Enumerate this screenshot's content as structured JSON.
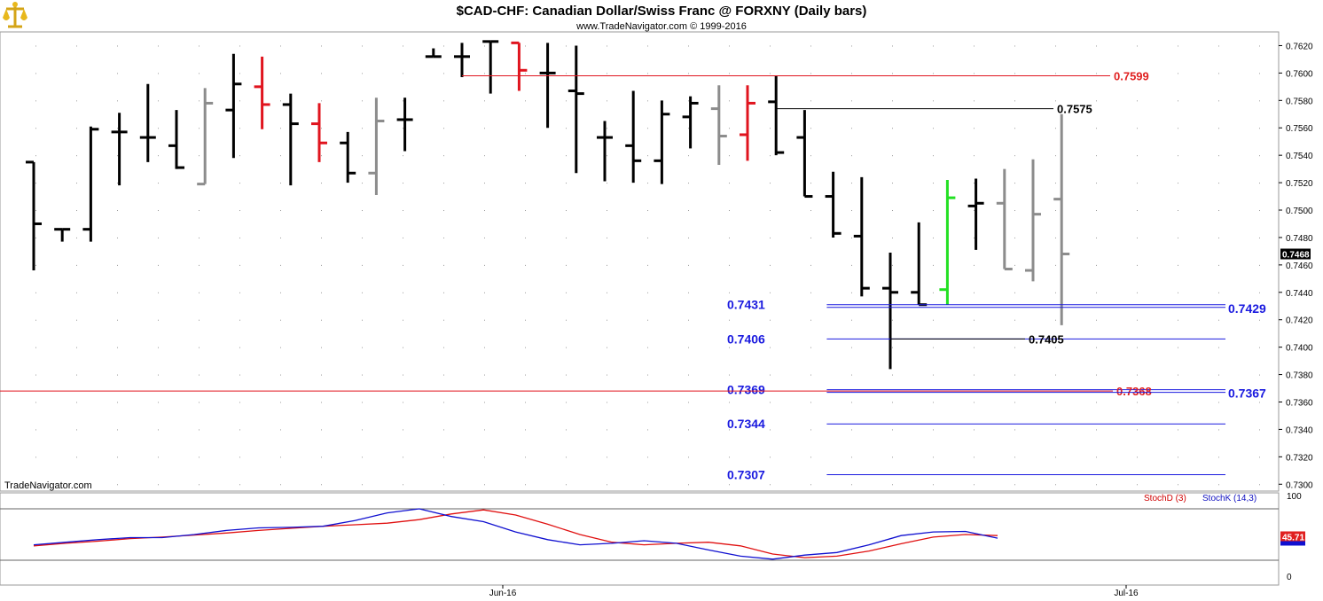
{
  "header": {
    "title": "$CAD-CHF:  Canadian Dollar/Swiss Franc @ FORXNY  (Daily bars)",
    "subtitle": "www.TradeNavigator.com © 1999-2016"
  },
  "watermark": "TradeNavigator.com",
  "logo_icon": "scales-icon",
  "colors": {
    "bar_black": "#000000",
    "bar_red": "#e0141e",
    "bar_gray": "#8c8c8c",
    "bar_green": "#22e022",
    "level_blue": "#1a1adf",
    "level_red": "#e02020",
    "stoch_d": "#e01010",
    "stoch_k": "#1010d0"
  },
  "chart_data": [
    {
      "type": "ohlc",
      "title": "$CAD-CHF:  Canadian Dollar/Swiss Franc @ FORXNY  (Daily bars)",
      "ylim": [
        0.7295,
        0.763
      ],
      "yticks": [
        "0.7620",
        "0.7600",
        "0.7580",
        "0.7560",
        "0.7540",
        "0.7520",
        "0.7500",
        "0.7480",
        "0.7460",
        "0.7440",
        "0.7420",
        "0.7400",
        "0.7380",
        "0.7360",
        "0.7340",
        "0.7320",
        "0.7300"
      ],
      "x_labels": [
        "Jun-16",
        "Jul-16"
      ],
      "last_price": "0.7468",
      "bars": [
        {
          "o": 0.7535,
          "h": 0.7535,
          "l": 0.7456,
          "c": 0.749,
          "color": "black"
        },
        {
          "o": 0.7486,
          "h": 0.7486,
          "l": 0.7477,
          "c": 0.7486,
          "color": "black"
        },
        {
          "o": 0.7486,
          "h": 0.7561,
          "l": 0.7477,
          "c": 0.7559,
          "color": "black"
        },
        {
          "o": 0.7557,
          "h": 0.7571,
          "l": 0.7518,
          "c": 0.7557,
          "color": "black"
        },
        {
          "o": 0.7553,
          "h": 0.7592,
          "l": 0.7535,
          "c": 0.7553,
          "color": "black"
        },
        {
          "o": 0.7547,
          "h": 0.7573,
          "l": 0.753,
          "c": 0.7531,
          "color": "black"
        },
        {
          "o": 0.7519,
          "h": 0.7589,
          "l": 0.7519,
          "c": 0.7578,
          "color": "gray"
        },
        {
          "o": 0.7573,
          "h": 0.7614,
          "l": 0.7538,
          "c": 0.7592,
          "color": "black"
        },
        {
          "o": 0.759,
          "h": 0.7612,
          "l": 0.7559,
          "c": 0.7577,
          "color": "red"
        },
        {
          "o": 0.7577,
          "h": 0.7585,
          "l": 0.7518,
          "c": 0.7563,
          "color": "black"
        },
        {
          "o": 0.7563,
          "h": 0.7578,
          "l": 0.7535,
          "c": 0.7549,
          "color": "red"
        },
        {
          "o": 0.7549,
          "h": 0.7557,
          "l": 0.752,
          "c": 0.7527,
          "color": "black"
        },
        {
          "o": 0.7527,
          "h": 0.7582,
          "l": 0.7511,
          "c": 0.7565,
          "color": "gray"
        },
        {
          "o": 0.7566,
          "h": 0.7582,
          "l": 0.7543,
          "c": 0.7566,
          "color": "black"
        },
        {
          "o": 0.7612,
          "h": 0.7618,
          "l": 0.7612,
          "c": 0.7612,
          "color": "black"
        },
        {
          "o": 0.7612,
          "h": 0.7622,
          "l": 0.7597,
          "c": 0.7612,
          "color": "black"
        },
        {
          "o": 0.7623,
          "h": 0.7623,
          "l": 0.7585,
          "c": 0.7623,
          "color": "black"
        },
        {
          "o": 0.7622,
          "h": 0.7622,
          "l": 0.7587,
          "c": 0.7602,
          "color": "red"
        },
        {
          "o": 0.76,
          "h": 0.7622,
          "l": 0.756,
          "c": 0.76,
          "color": "black"
        },
        {
          "o": 0.7587,
          "h": 0.762,
          "l": 0.7527,
          "c": 0.7585,
          "color": "black"
        },
        {
          "o": 0.7553,
          "h": 0.7565,
          "l": 0.7521,
          "c": 0.7553,
          "color": "black"
        },
        {
          "o": 0.7547,
          "h": 0.7587,
          "l": 0.752,
          "c": 0.7536,
          "color": "black"
        },
        {
          "o": 0.7536,
          "h": 0.758,
          "l": 0.7519,
          "c": 0.757,
          "color": "black"
        },
        {
          "o": 0.7568,
          "h": 0.7583,
          "l": 0.7545,
          "c": 0.7578,
          "color": "black"
        },
        {
          "o": 0.7574,
          "h": 0.7591,
          "l": 0.7533,
          "c": 0.7554,
          "color": "gray"
        },
        {
          "o": 0.7555,
          "h": 0.7591,
          "l": 0.7536,
          "c": 0.7578,
          "color": "red"
        },
        {
          "o": 0.7579,
          "h": 0.7598,
          "l": 0.754,
          "c": 0.7542,
          "color": "black"
        },
        {
          "o": 0.7553,
          "h": 0.7573,
          "l": 0.751,
          "c": 0.751,
          "color": "black"
        },
        {
          "o": 0.751,
          "h": 0.7528,
          "l": 0.748,
          "c": 0.7483,
          "color": "black"
        },
        {
          "o": 0.7481,
          "h": 0.7524,
          "l": 0.7437,
          "c": 0.7443,
          "color": "black"
        },
        {
          "o": 0.7443,
          "h": 0.7469,
          "l": 0.7384,
          "c": 0.744,
          "color": "black"
        },
        {
          "o": 0.744,
          "h": 0.7491,
          "l": 0.7431,
          "c": 0.7431,
          "color": "black"
        },
        {
          "o": 0.7442,
          "h": 0.7522,
          "l": 0.7431,
          "c": 0.7509,
          "color": "green"
        },
        {
          "o": 0.7503,
          "h": 0.7523,
          "l": 0.7471,
          "c": 0.7505,
          "color": "black"
        },
        {
          "o": 0.7505,
          "h": 0.753,
          "l": 0.7457,
          "c": 0.7457,
          "color": "gray"
        },
        {
          "o": 0.7456,
          "h": 0.7537,
          "l": 0.7448,
          "c": 0.7497,
          "color": "gray"
        },
        {
          "o": 0.7508,
          "h": 0.757,
          "l": 0.7416,
          "c": 0.7468,
          "color": "gray"
        }
      ],
      "levels": [
        {
          "label": "0.7599",
          "value": 0.7598,
          "color": "red",
          "from_bar": 15,
          "extend_right": false
        },
        {
          "label": "0.7575",
          "value": 0.7574,
          "color": "black",
          "from_bar": 26,
          "extend_right": false
        },
        {
          "label": "0.7431",
          "value": 0.7431,
          "color": "blue",
          "from_bar": 27,
          "extend_right": true
        },
        {
          "label": "0.7429",
          "value": 0.7429,
          "color": "blue",
          "from_bar": 27,
          "extend_right": true
        },
        {
          "label": "0.7406",
          "value": 0.7406,
          "color": "blue",
          "from_bar": 27,
          "extend_right": true
        },
        {
          "label": "0.7405",
          "value": 0.7406,
          "color": "black",
          "from_bar": 30,
          "extend_right": false
        },
        {
          "label": "0.7369",
          "value": 0.7369,
          "color": "blue",
          "from_bar": 27,
          "extend_right": true
        },
        {
          "label": "0.7368",
          "value": 0.7368,
          "color": "red",
          "from_bar": -1,
          "extend_right": true
        },
        {
          "label": "0.7367",
          "value": 0.7367,
          "color": "blue",
          "from_bar": 27,
          "extend_right": true
        },
        {
          "label": "0.7344",
          "value": 0.7344,
          "color": "blue",
          "from_bar": 27,
          "extend_right": true
        },
        {
          "label": "0.7307",
          "value": 0.7307,
          "color": "blue",
          "from_bar": 27,
          "extend_right": true
        }
      ]
    },
    {
      "type": "line",
      "ylim": [
        0,
        100
      ],
      "yticks": [
        "100",
        "0"
      ],
      "last_value": "45.71",
      "series": [
        {
          "name": "StochD (3)",
          "color": "red",
          "values": [
            28,
            33,
            37,
            42,
            45,
            49,
            53,
            58,
            62,
            66,
            69,
            72,
            79,
            90,
            98,
            88,
            70,
            50,
            35,
            30,
            33,
            35,
            28,
            12,
            5,
            8,
            18,
            32,
            45,
            50,
            48
          ]
        },
        {
          "name": "StochK (14,3)",
          "color": "blue",
          "values": [
            30,
            35,
            40,
            44,
            44,
            50,
            58,
            63,
            64,
            66,
            77,
            92,
            100,
            85,
            75,
            55,
            40,
            30,
            33,
            38,
            33,
            20,
            8,
            2,
            10,
            15,
            30,
            48,
            55,
            56,
            43
          ]
        }
      ]
    }
  ]
}
